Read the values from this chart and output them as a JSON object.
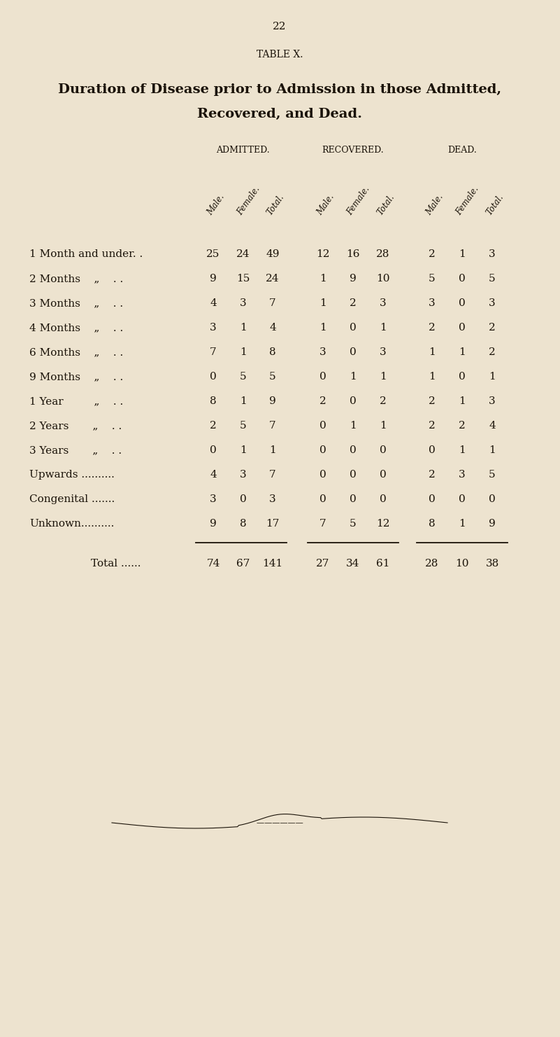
{
  "page_number": "22",
  "table_label": "TABLE X.",
  "title_line1": "Duration of Disease prior to Admission in those Admitted,",
  "title_line2": "Recovered, and Dead.",
  "group_headers": [
    "ADMITTED.",
    "RECOVERED.",
    "DEAD."
  ],
  "col_headers": [
    "Male.",
    "Female.",
    "Total.",
    "Male.",
    "Female.",
    "Total.",
    "Male.",
    "Female.",
    "Total."
  ],
  "data": [
    [
      25,
      24,
      49,
      12,
      16,
      28,
      2,
      1,
      3
    ],
    [
      9,
      15,
      24,
      1,
      9,
      10,
      5,
      0,
      5
    ],
    [
      4,
      3,
      7,
      1,
      2,
      3,
      3,
      0,
      3
    ],
    [
      3,
      1,
      4,
      1,
      0,
      1,
      2,
      0,
      2
    ],
    [
      7,
      1,
      8,
      3,
      0,
      3,
      1,
      1,
      2
    ],
    [
      0,
      5,
      5,
      0,
      1,
      1,
      1,
      0,
      1
    ],
    [
      8,
      1,
      9,
      2,
      0,
      2,
      2,
      1,
      3
    ],
    [
      2,
      5,
      7,
      0,
      1,
      1,
      2,
      2,
      4
    ],
    [
      0,
      1,
      1,
      0,
      0,
      0,
      0,
      1,
      1
    ],
    [
      4,
      3,
      7,
      0,
      0,
      0,
      2,
      3,
      5
    ],
    [
      3,
      0,
      3,
      0,
      0,
      0,
      0,
      0,
      0
    ],
    [
      9,
      8,
      17,
      7,
      5,
      12,
      8,
      1,
      9
    ]
  ],
  "row_label_left": [
    "1 Month and under. .",
    "2 Months    „    . .",
    "3 Months    „    . .",
    "4 Months    „    . .",
    "6 Months    „    . .",
    "9 Months    „    . .",
    "1 Year         „    . .",
    "2 Years       „    . .",
    "3 Years       „    . .",
    "Upwards ..........",
    "Congenital .......",
    "Unknown.........."
  ],
  "totals": [
    74,
    67,
    141,
    27,
    34,
    61,
    28,
    10,
    38
  ],
  "bg_color": "#ede3cf",
  "text_color": "#1a1208"
}
